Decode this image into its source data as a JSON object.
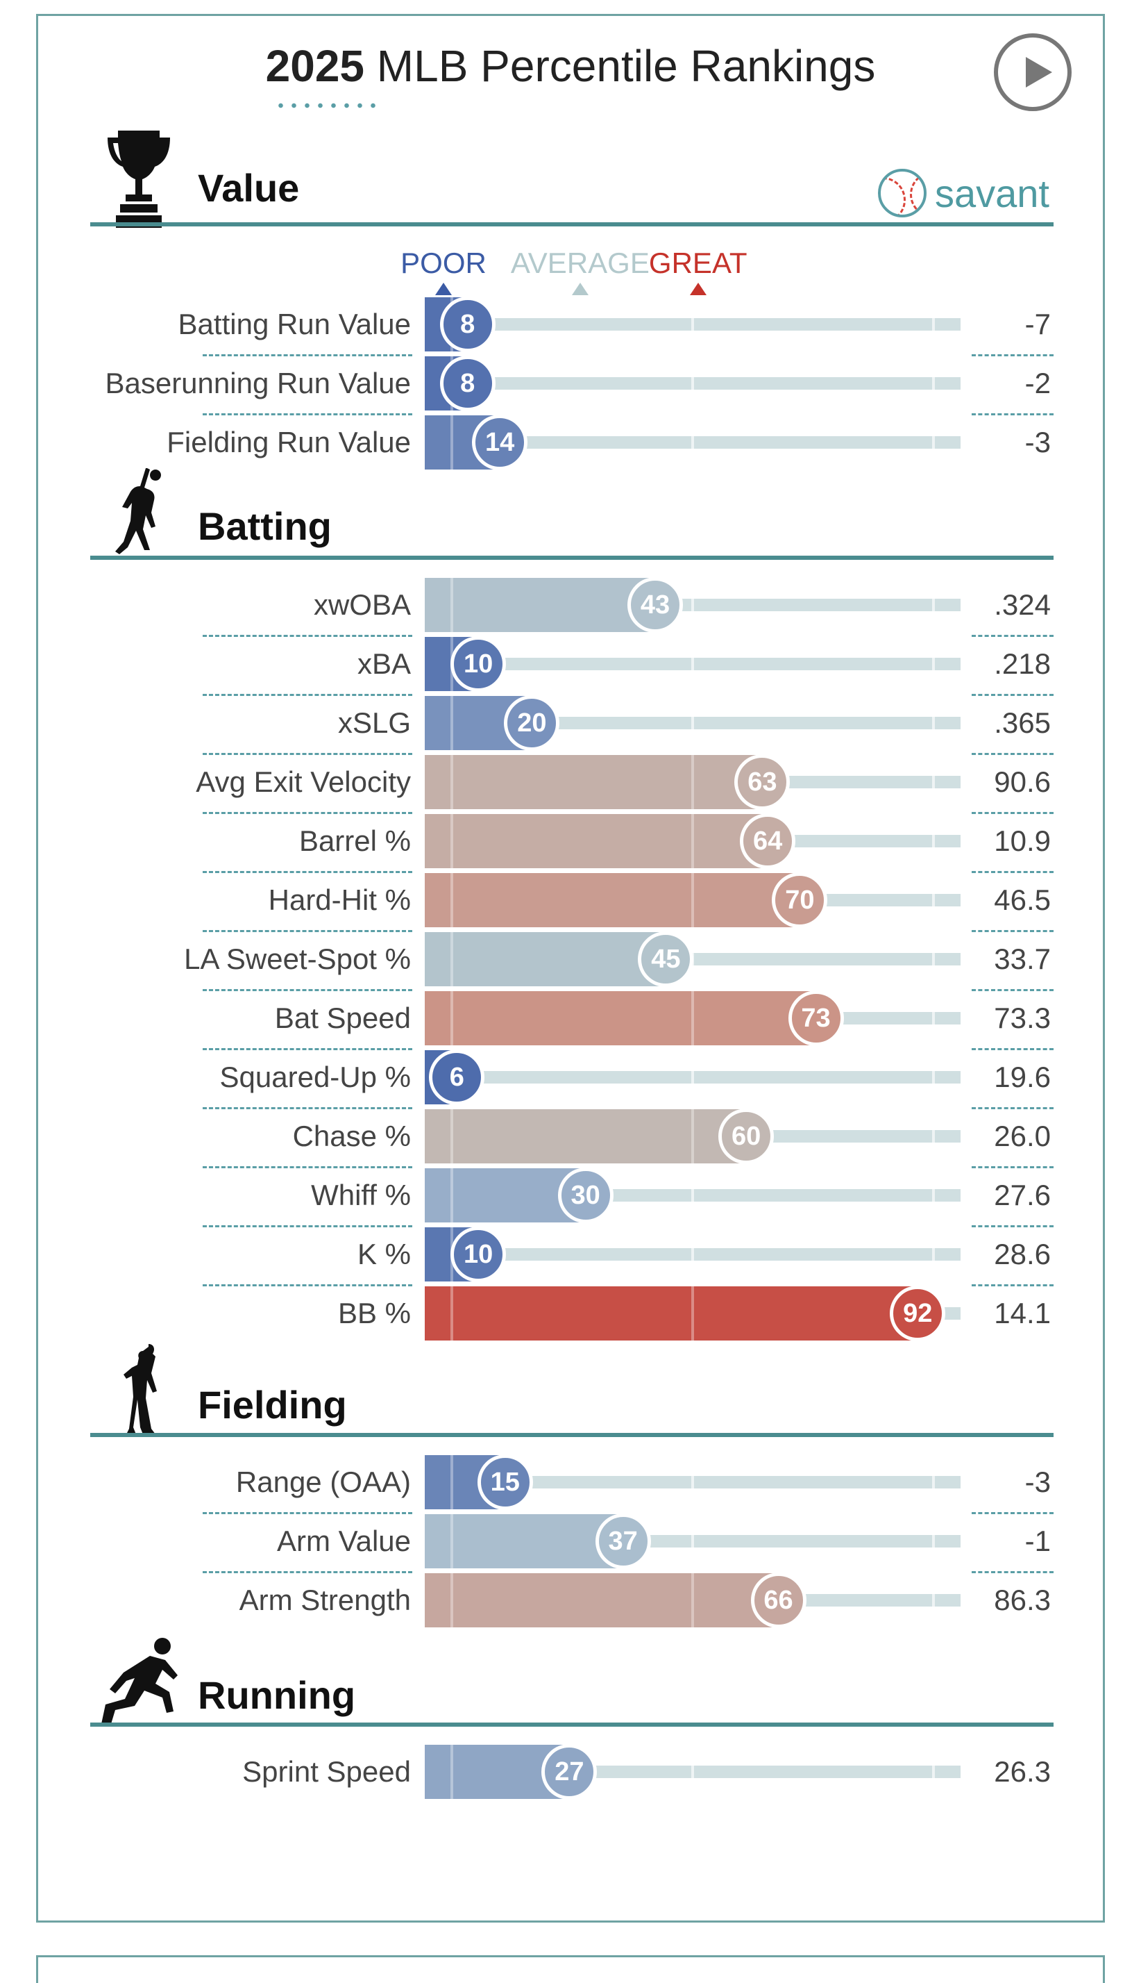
{
  "title": {
    "year": "2025",
    "text": "MLB Percentile Rankings"
  },
  "savant": {
    "label": "savant",
    "icon": "baseball-icon"
  },
  "play_button": {
    "icon": "play-icon"
  },
  "legend": {
    "poor": "POOR",
    "average": "AVERAGE",
    "great": "GREAT",
    "colors": {
      "poor": "#3b5ba5",
      "average": "#b3c9cc",
      "great": "#c5322a"
    }
  },
  "colors": {
    "section_line": "#4a8c8f",
    "track": "#d0dfe1",
    "frame": "#6fa3a3"
  },
  "chart_data": {
    "type": "bar",
    "xlim": [
      0,
      100
    ],
    "sections": [
      {
        "title": "Value",
        "icon": "trophy-icon",
        "metrics": [
          {
            "label": "Batting Run Value",
            "percentile": 8,
            "value": "-7"
          },
          {
            "label": "Baserunning Run Value",
            "percentile": 8,
            "value": "-2"
          },
          {
            "label": "Fielding Run Value",
            "percentile": 14,
            "value": "-3"
          }
        ]
      },
      {
        "title": "Batting",
        "icon": "batter-icon",
        "metrics": [
          {
            "label": "xwOBA",
            "percentile": 43,
            "value": ".324"
          },
          {
            "label": "xBA",
            "percentile": 10,
            "value": ".218"
          },
          {
            "label": "xSLG",
            "percentile": 20,
            "value": ".365"
          },
          {
            "label": "Avg Exit Velocity",
            "percentile": 63,
            "value": "90.6"
          },
          {
            "label": "Barrel %",
            "percentile": 64,
            "value": "10.9"
          },
          {
            "label": "Hard-Hit %",
            "percentile": 70,
            "value": "46.5"
          },
          {
            "label": "LA Sweet-Spot %",
            "percentile": 45,
            "value": "33.7"
          },
          {
            "label": "Bat Speed",
            "percentile": 73,
            "value": "73.3"
          },
          {
            "label": "Squared-Up %",
            "percentile": 6,
            "value": "19.6"
          },
          {
            "label": "Chase %",
            "percentile": 60,
            "value": "26.0"
          },
          {
            "label": "Whiff %",
            "percentile": 30,
            "value": "27.6"
          },
          {
            "label": "K %",
            "percentile": 10,
            "value": "28.6"
          },
          {
            "label": "BB %",
            "percentile": 92,
            "value": "14.1"
          }
        ]
      },
      {
        "title": "Fielding",
        "icon": "fielder-icon",
        "metrics": [
          {
            "label": "Range (OAA)",
            "percentile": 15,
            "value": "-3"
          },
          {
            "label": "Arm Value",
            "percentile": 37,
            "value": "-1"
          },
          {
            "label": "Arm Strength",
            "percentile": 66,
            "value": "86.3"
          }
        ]
      },
      {
        "title": "Running",
        "icon": "runner-icon",
        "metrics": [
          {
            "label": "Sprint Speed",
            "percentile": 27,
            "value": "26.3"
          }
        ]
      }
    ]
  }
}
